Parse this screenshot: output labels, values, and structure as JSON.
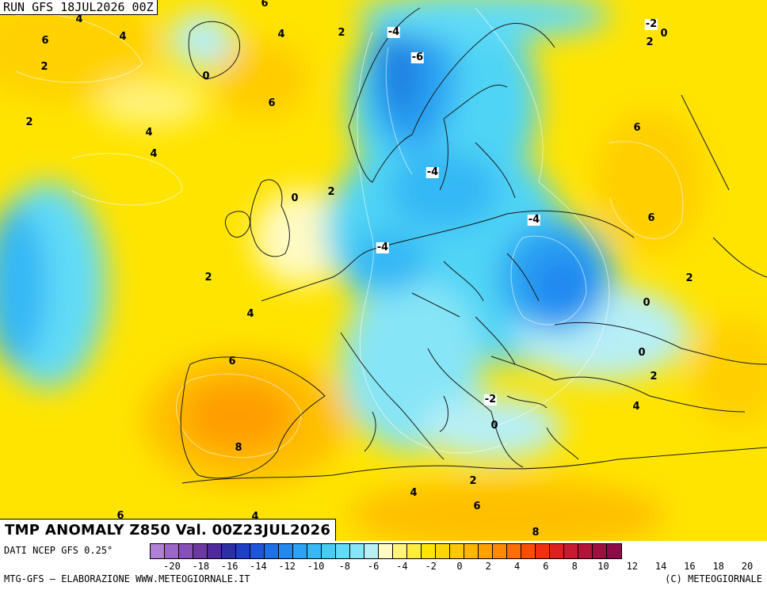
{
  "header": {
    "run_label": "RUN GFS 18JUL2026 00Z"
  },
  "title": "TMP ANOMALY Z850 Val. 00Z23JUL2026",
  "map": {
    "fill_palette": {
      "deep_blue": "#1f7fe0",
      "blue": "#2ea8ef",
      "cyan": "#4fd4f5",
      "light_cyan": "#9fe9f7",
      "pale": "#fffccc",
      "yellow": "#ffea00",
      "gold": "#ffd200",
      "orange": "#ffb000",
      "dark_orange": "#ff9d00"
    },
    "coastline_color": "#1a1a1a",
    "contour_labels": [
      "6",
      "4",
      "6",
      "4",
      "2",
      "0",
      "4",
      "6",
      "2",
      "2",
      "4",
      "-4",
      "-6",
      "-2",
      "0",
      "2",
      "-4",
      "-4",
      "2",
      "0",
      "4",
      "6",
      "-4",
      "2",
      "0",
      "2",
      "4",
      "0",
      "2",
      "4",
      "6",
      "-2",
      "0",
      "6",
      "8",
      "2",
      "4",
      "6",
      "8",
      "6",
      "4"
    ]
  },
  "footer": {
    "source": "DATI NCEP GFS 0.25°",
    "credit_left": "MTG-GFS — ELABORAZIONE WWW.METEOGIORNALE.IT",
    "credit_right": "(C) METEOGIORNALE"
  },
  "colorbar": {
    "colors": [
      "#b07fd6",
      "#9a66c8",
      "#8650b4",
      "#6b3aa0",
      "#4e2a9a",
      "#2c2fa6",
      "#1f3fc4",
      "#1d55db",
      "#1f6fe8",
      "#2388f0",
      "#2ba2f3",
      "#36b8f5",
      "#48ccf6",
      "#62dbf6",
      "#86e5f6",
      "#b7eff5",
      "#fffac2",
      "#fff37a",
      "#ffed3d",
      "#ffe400",
      "#ffd700",
      "#ffc800",
      "#ffb600",
      "#ffa200",
      "#ff8a00",
      "#ff6e00",
      "#ff4d00",
      "#f03010",
      "#dc2020",
      "#c81a30",
      "#b31538",
      "#9e1040",
      "#8a0c48"
    ],
    "ticks": [
      "-20",
      "-18",
      "-16",
      "-14",
      "-12",
      "-10",
      "-8",
      "-6",
      "-4",
      "-2",
      "0",
      "2",
      "4",
      "6",
      "8",
      "10",
      "12",
      "14",
      "16",
      "18",
      "20"
    ]
  }
}
